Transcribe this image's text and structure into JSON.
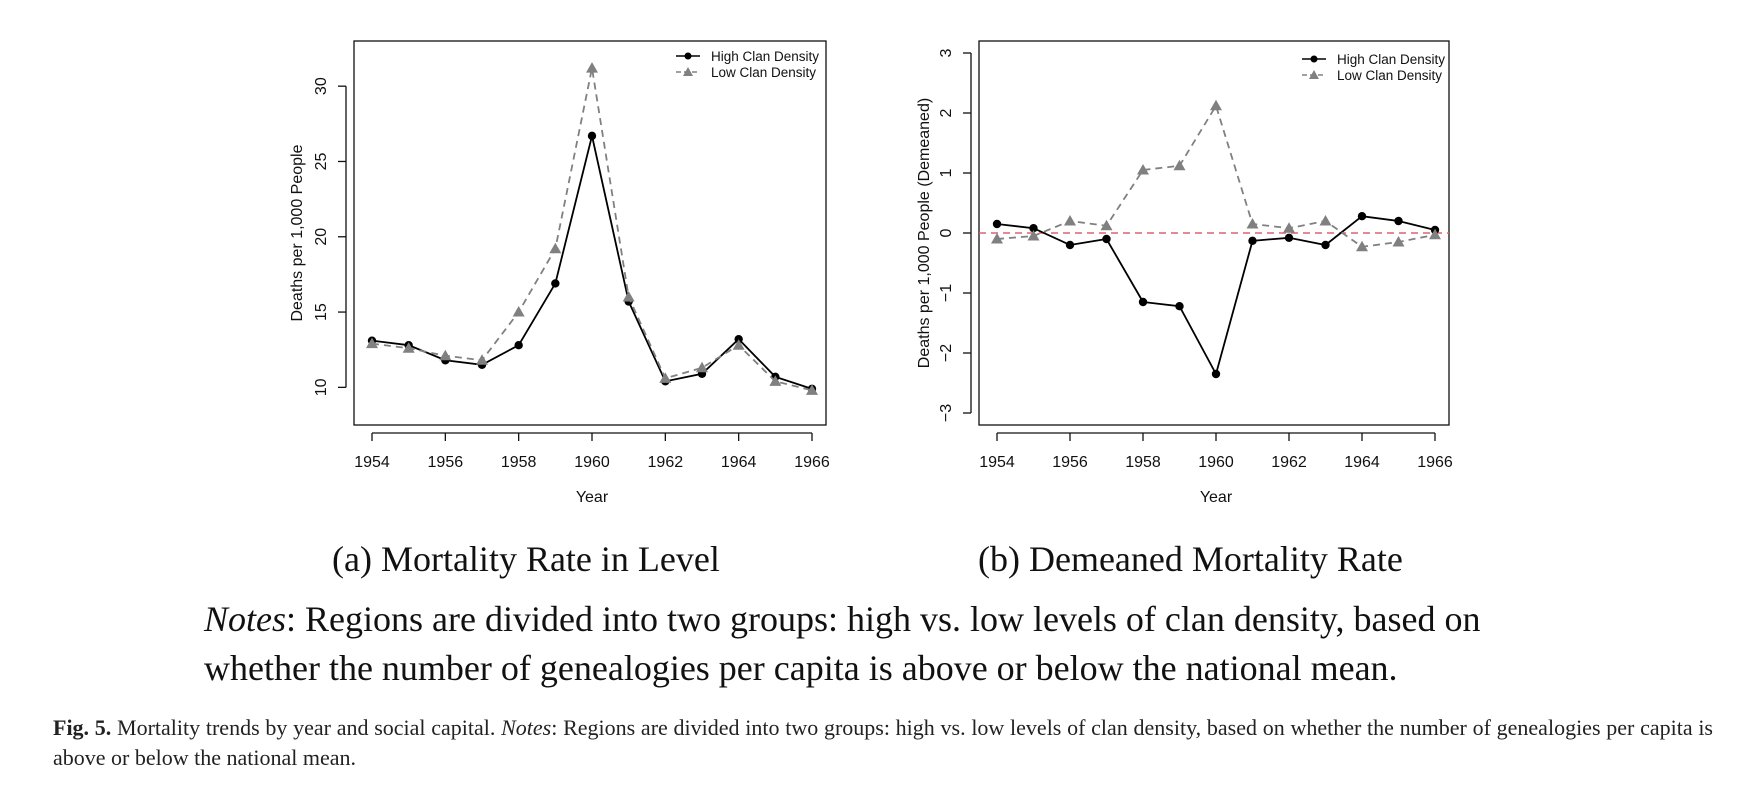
{
  "chart_data": [
    {
      "type": "line",
      "xlabel": "Year",
      "ylabel": "Deaths per 1,000 People",
      "x": [
        1954,
        1955,
        1956,
        1957,
        1958,
        1959,
        1960,
        1961,
        1962,
        1963,
        1964,
        1965,
        1966
      ],
      "xticks": [
        "1954",
        "1956",
        "1958",
        "1960",
        "1962",
        "1964",
        "1966"
      ],
      "yticks": [
        "10",
        "15",
        "20",
        "25",
        "30"
      ],
      "xlim": [
        1954,
        1966
      ],
      "ylim": [
        7.5,
        33
      ],
      "legend_position": "top-right",
      "grid": false,
      "series": [
        {
          "name": "High Clan Density",
          "style": "solid",
          "marker": "circle",
          "color": "#000000",
          "values": [
            13.1,
            12.8,
            11.8,
            11.5,
            12.8,
            16.9,
            26.7,
            15.7,
            10.4,
            10.9,
            13.2,
            10.7,
            9.9
          ]
        },
        {
          "name": "Low Clan Density",
          "style": "dashed",
          "marker": "triangle",
          "color": "#808080",
          "values": [
            12.9,
            12.6,
            12.1,
            11.8,
            15.0,
            19.2,
            31.2,
            16.0,
            10.6,
            11.3,
            12.8,
            10.4,
            9.8
          ]
        }
      ]
    },
    {
      "type": "line",
      "xlabel": "Year",
      "ylabel": "Deaths per 1,000 People (Demeaned)",
      "x": [
        1954,
        1955,
        1956,
        1957,
        1958,
        1959,
        1960,
        1961,
        1962,
        1963,
        1964,
        1965,
        1966
      ],
      "xticks": [
        "1954",
        "1956",
        "1958",
        "1960",
        "1962",
        "1964",
        "1966"
      ],
      "yticks": [
        "−3",
        "−2",
        "−1",
        "0",
        "1",
        "2",
        "3"
      ],
      "xlim": [
        1954,
        1966
      ],
      "ylim": [
        -3.2,
        3.2
      ],
      "reference_line": {
        "y": 0,
        "style": "dashed",
        "color": "#e0606e"
      },
      "legend_position": "top-right",
      "grid": false,
      "series": [
        {
          "name": "High Clan Density",
          "style": "solid",
          "marker": "circle",
          "color": "#000000",
          "values": [
            0.15,
            0.08,
            -0.2,
            -0.1,
            -1.15,
            -1.22,
            -2.35,
            -0.13,
            -0.08,
            -0.2,
            0.28,
            0.2,
            0.05
          ]
        },
        {
          "name": "Low Clan Density",
          "style": "dashed",
          "marker": "triangle",
          "color": "#808080",
          "values": [
            -0.1,
            -0.05,
            0.2,
            0.12,
            1.05,
            1.12,
            2.12,
            0.15,
            0.08,
            0.2,
            -0.23,
            -0.15,
            -0.03
          ]
        }
      ]
    }
  ],
  "subcaptions": {
    "a": "(a) Mortality Rate in Level",
    "b": "(b) Demeaned Mortality Rate"
  },
  "notes": {
    "label": "Notes",
    "line1": ": Regions are divided into two groups: high vs. low levels of clan density, based on",
    "line2": "whether the number of genealogies per capita is above or below the national mean."
  },
  "caption": {
    "label": "Fig. 5.",
    "text1": " Mortality trends by year and social capital. ",
    "notes_label": "Notes",
    "text2": ": Regions are divided into two groups: high vs. low levels of clan density, based on whether the number of genealogies per capita is above or below the national mean."
  }
}
